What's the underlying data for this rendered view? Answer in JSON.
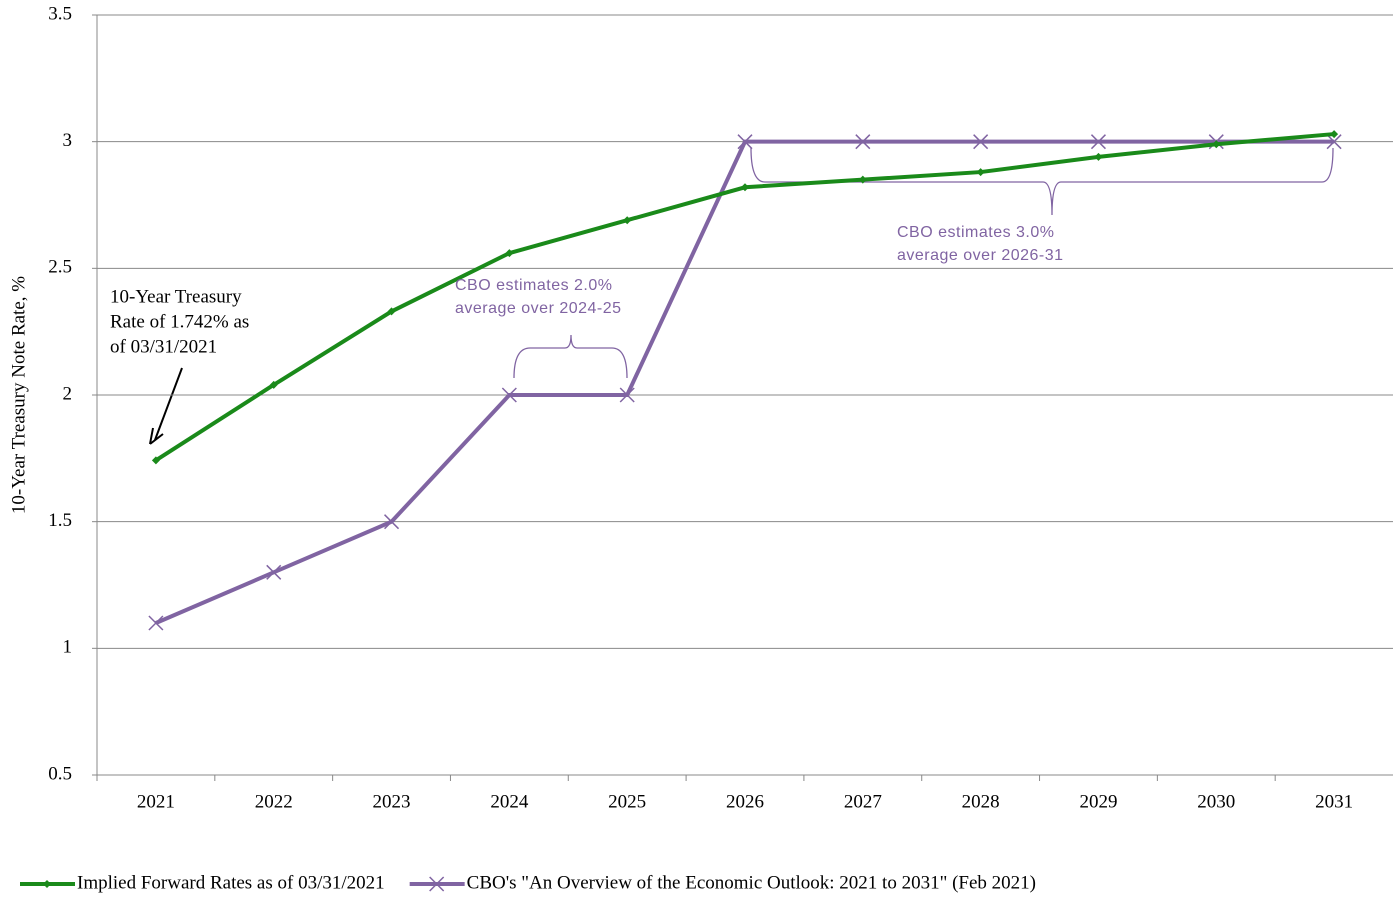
{
  "chart_data": {
    "type": "line",
    "y_label": "10-Year Treasury Note Rate, %",
    "categories": [
      "2021",
      "2022",
      "2023",
      "2024",
      "2025",
      "2026",
      "2027",
      "2028",
      "2029",
      "2030",
      "2031"
    ],
    "series": [
      {
        "name": "Implied Forward Rates as of 03/31/2021",
        "color": "#1a8a1a",
        "marker": "diamond",
        "values": [
          1.742,
          2.04,
          2.33,
          2.56,
          2.69,
          2.82,
          2.85,
          2.88,
          2.94,
          2.99,
          3.03
        ]
      },
      {
        "name": "CBO's \"An Overview of the Economic Outlook: 2021 to 2031\" (Feb 2021)",
        "color": "#8064a2",
        "marker": "x",
        "values": [
          1.1,
          1.3,
          1.5,
          2,
          2,
          3,
          3,
          3,
          3,
          3,
          3
        ]
      }
    ],
    "ylim": [
      0.5,
      3.5
    ],
    "yticks": [
      0.5,
      1,
      1.5,
      2,
      2.5,
      3,
      3.5
    ],
    "grid": true,
    "annotations": {
      "treasury": [
        "10-Year Treasury",
        "Rate of 1.742% as",
        "of  03/31/2021"
      ],
      "cbo_2024": [
        "CBO estimates 2.0%",
        "average over 2024-25"
      ],
      "cbo_2026": [
        "CBO estimates 3.0%",
        "average over 2026-31"
      ]
    }
  }
}
